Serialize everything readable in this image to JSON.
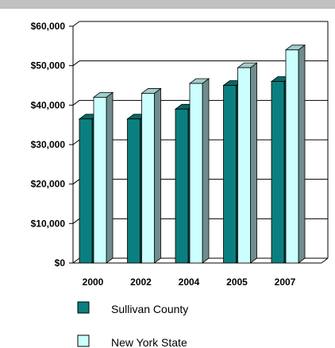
{
  "chart_data": {
    "type": "bar",
    "categories": [
      "2000",
      "2002",
      "2004",
      "2005",
      "2007"
    ],
    "series": [
      {
        "name": "Sullivan County",
        "values": [
          36500,
          36500,
          39000,
          45000,
          46000
        ],
        "color": "#0b7f7f"
      },
      {
        "name": "New York  State",
        "values": [
          42000,
          43000,
          45500,
          49500,
          54000
        ],
        "color": "#ccffff"
      }
    ],
    "ylim": [
      0,
      60000
    ],
    "yticks": [
      0,
      10000,
      20000,
      30000,
      40000,
      50000,
      60000
    ],
    "ytick_labels": [
      "$0",
      "$10,000",
      "$20,000",
      "$30,000",
      "$40,000",
      "$50,000",
      "$60,000"
    ],
    "grid": true,
    "legend": "bottom-left",
    "title": "",
    "xlabel": "",
    "ylabel": ""
  },
  "colors": {
    "top_band": "#c0c0c0",
    "gridline": "#000000"
  }
}
